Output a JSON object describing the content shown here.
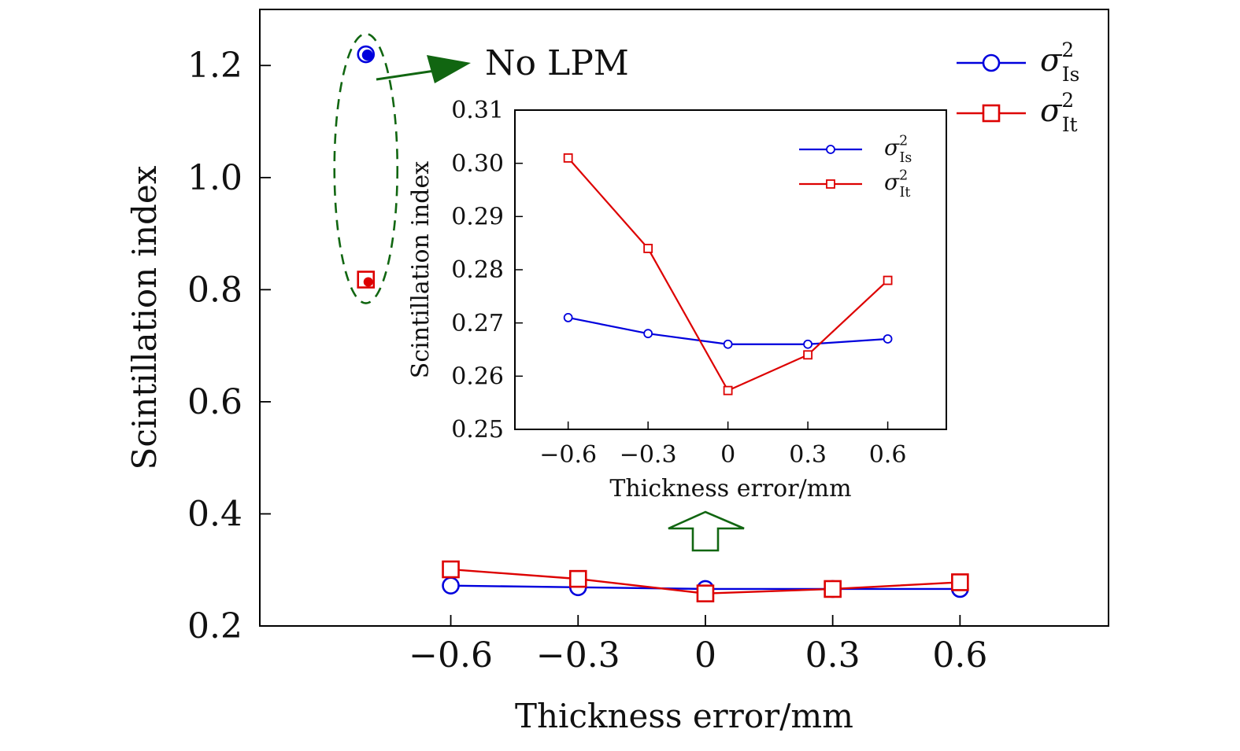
{
  "chart_data": [
    {
      "type": "line",
      "xlabel": "Thickness error/mm",
      "ylabel": "Scintillation index",
      "xlim": [
        -1.05,
        0.95
      ],
      "ylim": [
        0.2,
        1.3
      ],
      "x": [
        -0.6,
        -0.3,
        0,
        0.3,
        0.6
      ],
      "xticks": [
        -0.6,
        -0.3,
        0,
        0.3,
        0.6
      ],
      "xtick_labels": [
        "−0.6",
        "−0.3",
        "0",
        "0.3",
        "0.6"
      ],
      "yticks": [
        0.2,
        0.4,
        0.6,
        0.8,
        1.0,
        1.2
      ],
      "ytick_labels": [
        "0.2",
        "0.4",
        "0.6",
        "0.8",
        "1.0",
        "1.2"
      ],
      "grid": false,
      "legend_position": "top-right",
      "series": [
        {
          "name_base": "σ",
          "name_sup": "2",
          "name_sub": "Is",
          "marker": "circle",
          "color": "#0000dd",
          "values": [
            0.272,
            0.269,
            0.266,
            0.266,
            0.266
          ]
        },
        {
          "name_base": "σ",
          "name_sup": "2",
          "name_sub": "It",
          "marker": "square",
          "color": "#dd0000",
          "values": [
            0.301,
            0.284,
            0.258,
            0.266,
            0.278
          ]
        }
      ],
      "no_lpm": {
        "label": "No LPM",
        "x": -0.8,
        "is_value": 1.22,
        "it_value": 0.818
      }
    },
    {
      "type": "line",
      "inset": true,
      "xlabel": "Thickness error/mm",
      "ylabel": "Scintillation index",
      "xlim": [
        -0.8,
        0.82
      ],
      "ylim": [
        0.25,
        0.31
      ],
      "x": [
        -0.6,
        -0.3,
        0,
        0.3,
        0.6
      ],
      "xticks": [
        -0.6,
        -0.3,
        0,
        0.3,
        0.6
      ],
      "xtick_labels": [
        "−0.6",
        "−0.3",
        "0",
        "0.3",
        "0.6"
      ],
      "yticks": [
        0.25,
        0.26,
        0.27,
        0.28,
        0.29,
        0.3,
        0.31
      ],
      "ytick_labels": [
        "0.25",
        "0.26",
        "0.27",
        "0.28",
        "0.29",
        "0.30",
        "0.31"
      ],
      "grid": false,
      "legend_position": "top-right",
      "series": [
        {
          "name_base": "σ",
          "name_sup": "2",
          "name_sub": "Is",
          "marker": "circle",
          "color": "#0000dd",
          "values": [
            0.271,
            0.268,
            0.266,
            0.266,
            0.267
          ]
        },
        {
          "name_base": "σ",
          "name_sup": "2",
          "name_sub": "It",
          "marker": "square",
          "color": "#dd0000",
          "values": [
            0.301,
            0.284,
            0.2573,
            0.264,
            0.278
          ]
        }
      ]
    }
  ],
  "annotation_color": "#116611"
}
